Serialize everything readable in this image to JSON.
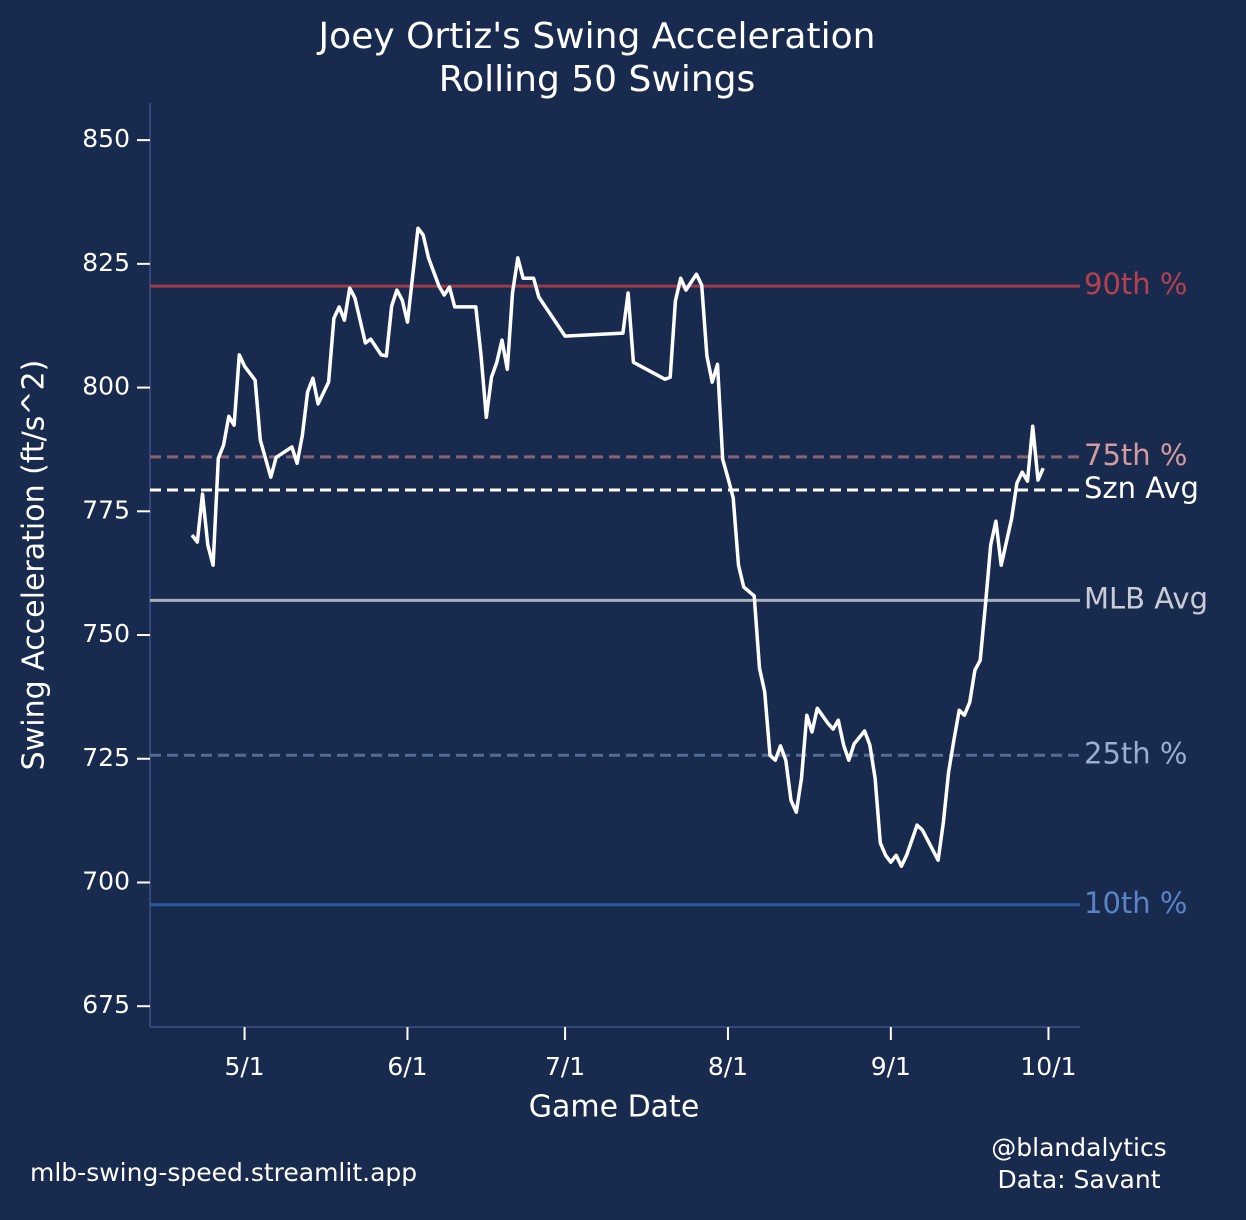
{
  "chart_data": {
    "type": "line",
    "title": "Joey Ortiz's Swing Acceleration",
    "subtitle": "Rolling 50 Swings",
    "x_label": "Game Date",
    "y_label": "Swing Acceleration (ft/s^2)",
    "color": "#ffffff",
    "x": [
      "4/21",
      "4/22",
      "4/23",
      "4/24",
      "4/25",
      "4/26",
      "4/27",
      "4/28",
      "4/29",
      "4/30",
      "5/1",
      "5/3",
      "5/4",
      "5/6",
      "5/7",
      "5/10",
      "5/11",
      "5/12",
      "5/13",
      "5/14",
      "5/15",
      "5/17",
      "5/18",
      "5/19",
      "5/20",
      "5/21",
      "5/22",
      "5/24",
      "5/25",
      "5/27",
      "5/28",
      "5/29",
      "5/30",
      "5/31",
      "6/1",
      "6/3",
      "6/4",
      "6/5",
      "6/7",
      "6/8",
      "6/9",
      "6/10",
      "6/14",
      "6/15",
      "6/16",
      "6/17",
      "6/18",
      "6/19",
      "6/20",
      "6/21",
      "6/22",
      "6/23",
      "6/25",
      "6/26",
      "7/1",
      "7/12",
      "7/13",
      "7/14",
      "7/20",
      "7/21",
      "7/22",
      "7/23",
      "7/24",
      "7/26",
      "7/27",
      "7/28",
      "7/29",
      "7/30",
      "7/31",
      "8/1",
      "8/2",
      "8/3",
      "8/4",
      "8/6",
      "8/7",
      "8/8",
      "8/9",
      "8/10",
      "8/11",
      "8/12",
      "8/13",
      "8/14",
      "8/15",
      "8/16",
      "8/17",
      "8/18",
      "8/20",
      "8/21",
      "8/22",
      "8/23",
      "8/24",
      "8/25",
      "8/27",
      "8/28",
      "8/29",
      "8/30",
      "8/31",
      "9/1",
      "9/2",
      "9/3",
      "9/4",
      "9/6",
      "9/7",
      "9/10",
      "9/11",
      "9/12",
      "9/13",
      "9/14",
      "9/15",
      "9/16",
      "9/17",
      "9/18",
      "9/19",
      "9/20",
      "9/21",
      "9/22",
      "9/23",
      "9/24",
      "9/25",
      "9/26",
      "9/27",
      "9/28",
      "9/29",
      "9/30"
    ],
    "values": [
      770.2,
      768.8,
      778.5,
      768.2,
      764.1,
      785.7,
      788.4,
      794.2,
      792.4,
      806.6,
      804.3,
      801.5,
      789.4,
      781.9,
      785.9,
      788,
      784.7,
      790.4,
      799.1,
      801.9,
      796.7,
      801.1,
      814,
      816.3,
      813.6,
      820.1,
      818.1,
      809,
      809.8,
      806.6,
      806.4,
      816.5,
      819.7,
      817.7,
      813.2,
      832.2,
      830.8,
      826.2,
      820.5,
      818.7,
      820.3,
      816.3,
      816.3,
      806.6,
      794,
      802.1,
      805.1,
      809.6,
      803.7,
      819.1,
      826.2,
      822.1,
      822.1,
      818.3,
      810.4,
      811,
      819.1,
      805.1,
      801.7,
      802.1,
      817.5,
      822.1,
      819.7,
      822.9,
      820.7,
      806.4,
      801.1,
      804.7,
      785.5,
      781.7,
      777.7,
      764.1,
      759.7,
      757.9,
      743.3,
      738.5,
      725.7,
      724.7,
      727.6,
      724.7,
      716.6,
      714.2,
      721.1,
      733.8,
      730.4,
      735.2,
      732.2,
      731,
      732.8,
      727.8,
      724.7,
      728,
      730.6,
      727.8,
      721.1,
      708,
      705.5,
      704.1,
      705.5,
      703.3,
      705.5,
      711.6,
      710.6,
      704.5,
      712.2,
      722.3,
      728.8,
      734.8,
      733.8,
      736.4,
      742.9,
      744.9,
      756,
      768.2,
      773,
      764.1,
      768.8,
      773.6,
      780.7,
      782.9,
      781.1,
      792.2,
      781.3,
      783.7
    ],
    "xlim": [
      "4/13",
      "10/7"
    ],
    "xticks": [
      "5/1",
      "6/1",
      "7/1",
      "8/1",
      "9/1",
      "10/1"
    ],
    "ylim": [
      670.8,
      857.5
    ],
    "yticks": [
      675,
      700,
      725,
      750,
      775,
      800,
      825,
      850
    ],
    "reference_lines": [
      {
        "label": "90th %",
        "value": 820.5,
        "color": "#9e3a48",
        "label_color": "#b8404e",
        "dashed": false
      },
      {
        "label": "75th %",
        "value": 786,
        "color": "#8a6474",
        "label_color": "#d49aa0",
        "dashed": true
      },
      {
        "label": "Szn Avg",
        "value": 779.3,
        "color": "#ffffff",
        "label_color": "#ffffff",
        "dashed": true
      },
      {
        "label": "MLB Avg",
        "value": 757,
        "color": "#a8b0bc",
        "label_color": "#c8ccd4",
        "dashed": false
      },
      {
        "label": "25th %",
        "value": 725.7,
        "color": "#546c94",
        "label_color": "#9aaed0",
        "dashed": true
      },
      {
        "label": "10th %",
        "value": 695.5,
        "color": "#2a5aa0",
        "label_color": "#5a84c4",
        "dashed": false
      }
    ],
    "credits": {
      "site": "mlb-swing-speed.streamlit.app",
      "author": "@blandalytics",
      "source": "Data: Savant"
    }
  }
}
